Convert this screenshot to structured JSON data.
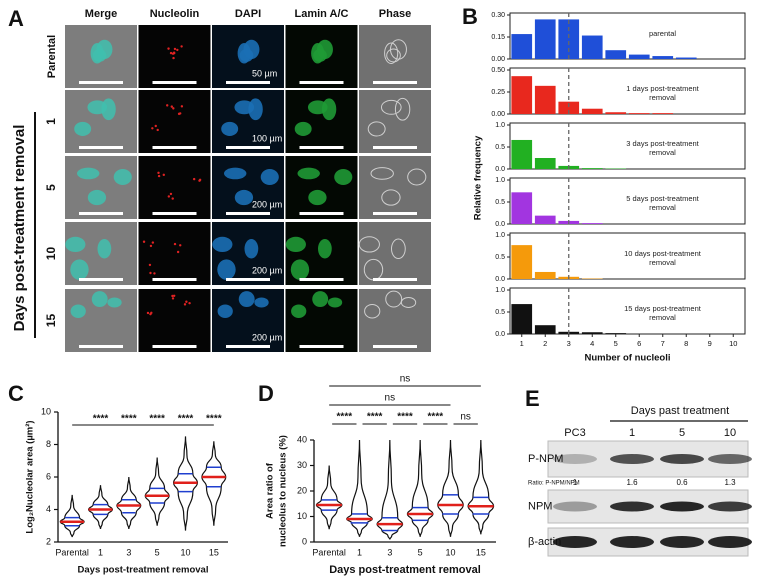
{
  "panel_a": {
    "letter": "A",
    "columns": [
      "Merge",
      "Nucleolin",
      "DAPI",
      "Lamin A/C",
      "Phase"
    ],
    "y_label": "Days post-treatment removal",
    "rows": [
      {
        "label": "Parental",
        "scale": "50 µm"
      },
      {
        "label": "1",
        "scale": "100 µm"
      },
      {
        "label": "5",
        "scale": "200 µm"
      },
      {
        "label": "10",
        "scale": "200 µm"
      },
      {
        "label": "15",
        "scale": "200 µm"
      }
    ]
  },
  "chart_data": [
    {
      "type": "bar",
      "letter": "B",
      "x_label": "Number of nucleoli",
      "y_label": "Relative frequency",
      "categories": [
        "1",
        "2",
        "3",
        "4",
        "5",
        "6",
        "7",
        "8",
        "9",
        "10"
      ],
      "vline": 3,
      "panels": [
        {
          "annotation": "parental",
          "color": "#1f4fd8",
          "values": [
            0.17,
            0.27,
            0.27,
            0.16,
            0.06,
            0.03,
            0.02,
            0.01,
            0,
            0
          ],
          "ylim": [
            0,
            0.3
          ],
          "yticks": [
            {
              "value": 0,
              "label": "0.00"
            },
            {
              "value": 0.15,
              "label": "0.15"
            },
            {
              "value": 0.3,
              "label": "0.30"
            }
          ]
        },
        {
          "annotation": "1 days post-treatment removal",
          "color": "#e8281e",
          "values": [
            0.43,
            0.32,
            0.14,
            0.06,
            0.02,
            0.01,
            0.01,
            0,
            0,
            0
          ],
          "ylim": [
            0,
            0.5
          ],
          "yticks": [
            {
              "value": 0,
              "label": "0.00"
            },
            {
              "value": 0.25,
              "label": "0.25"
            },
            {
              "value": 0.5,
              "label": "0.50"
            }
          ]
        },
        {
          "annotation": "3 days post-treatment removal",
          "color": "#22b022",
          "values": [
            0.66,
            0.25,
            0.07,
            0.02,
            0.01,
            0,
            0,
            0,
            0,
            0
          ],
          "ylim": [
            0,
            1
          ],
          "yticks": [
            {
              "value": 0,
              "label": "0.0"
            },
            {
              "value": 0.5,
              "label": "0.5"
            },
            {
              "value": 1,
              "label": "1.0"
            }
          ]
        },
        {
          "annotation": "5 days post-treatment removal",
          "color": "#a235e0",
          "values": [
            0.72,
            0.19,
            0.07,
            0.02,
            0,
            0,
            0,
            0,
            0,
            0
          ],
          "ylim": [
            0,
            1
          ],
          "yticks": [
            {
              "value": 0,
              "label": "0.0"
            },
            {
              "value": 0.5,
              "label": "0.5"
            },
            {
              "value": 1,
              "label": "1.0"
            }
          ]
        },
        {
          "annotation": "10 days post-treatment removal",
          "color": "#f59a0b",
          "values": [
            0.77,
            0.16,
            0.05,
            0.01,
            0,
            0,
            0,
            0,
            0,
            0
          ],
          "ylim": [
            0,
            1
          ],
          "yticks": [
            {
              "value": 0,
              "label": "0.0"
            },
            {
              "value": 0.5,
              "label": "0.5"
            },
            {
              "value": 1,
              "label": "1.0"
            }
          ]
        },
        {
          "annotation": "15 days post-treatment removal",
          "color": "#111111",
          "values": [
            0.68,
            0.2,
            0.05,
            0.04,
            0.02,
            0,
            0,
            0,
            0,
            0
          ],
          "ylim": [
            0,
            1
          ],
          "yticks": [
            {
              "value": 0,
              "label": "0.0"
            },
            {
              "value": 0.5,
              "label": "0.5"
            },
            {
              "value": 1,
              "label": "1.0"
            }
          ]
        }
      ]
    },
    {
      "type": "violin",
      "letter": "C",
      "x_label": "Days post-treatment removal",
      "y_label": [
        "Log₂Nucleolar area (µm²)"
      ],
      "categories": [
        "Parental",
        "1",
        "3",
        "5",
        "10",
        "15"
      ],
      "ylim": [
        2,
        10
      ],
      "yticks": [
        2,
        4,
        6,
        8,
        10
      ],
      "median_color": "#e0201b",
      "quartile_color": "#1f3fcf",
      "bracket": "shared",
      "stats": [
        {
          "min": 2.3,
          "q1": 3.0,
          "median": 3.25,
          "q3": 3.5,
          "max": 4.9
        },
        {
          "min": 2.8,
          "q1": 3.7,
          "median": 4.0,
          "q3": 4.3,
          "max": 5.5
        },
        {
          "min": 2.8,
          "q1": 3.8,
          "median": 4.25,
          "q3": 4.6,
          "max": 6.0
        },
        {
          "min": 3.0,
          "q1": 4.4,
          "median": 4.85,
          "q3": 5.3,
          "max": 7.2
        },
        {
          "min": 2.7,
          "q1": 5.1,
          "median": 5.65,
          "q3": 6.2,
          "max": 8.5
        },
        {
          "min": 3.0,
          "q1": 5.4,
          "median": 6.0,
          "q3": 6.6,
          "max": 8.2
        }
      ],
      "comparisons": [
        {
          "from": "Parental",
          "to": "1",
          "label": "****"
        },
        {
          "from": "Parental",
          "to": "3",
          "label": "****"
        },
        {
          "from": "Parental",
          "to": "5",
          "label": "****"
        },
        {
          "from": "Parental",
          "to": "10",
          "label": "****"
        },
        {
          "from": "Parental",
          "to": "15",
          "label": "****"
        }
      ]
    },
    {
      "type": "violin",
      "letter": "D",
      "x_label": "Days post-treatment removal",
      "y_label": [
        "Area ratio of",
        "nucleolus to nucleus (%)"
      ],
      "categories": [
        "Parental",
        "1",
        "3",
        "5",
        "10",
        "15"
      ],
      "ylim": [
        0,
        40
      ],
      "yticks": [
        0,
        10,
        20,
        30,
        40
      ],
      "median_color": "#e0201b",
      "quartile_color": "#1f3fcf",
      "bracket": "pairs",
      "stats": [
        {
          "min": 5,
          "q1": 12.5,
          "median": 14.5,
          "q3": 16.5,
          "max": 30
        },
        {
          "min": 2,
          "q1": 7.5,
          "median": 9,
          "q3": 11,
          "max": 40
        },
        {
          "min": 1,
          "q1": 4.5,
          "median": 7,
          "q3": 9.5,
          "max": 40
        },
        {
          "min": 2,
          "q1": 8.5,
          "median": 11,
          "q3": 13.5,
          "max": 40
        },
        {
          "min": 2,
          "q1": 11,
          "median": 14.5,
          "q3": 18.5,
          "max": 40
        },
        {
          "min": 3,
          "q1": 11,
          "median": 14,
          "q3": 17.5,
          "max": 40
        }
      ],
      "comparisons": [
        {
          "from": "Parental",
          "to": "1",
          "label": "****"
        },
        {
          "from": "1",
          "to": "3",
          "label": "****"
        },
        {
          "from": "3",
          "to": "5",
          "label": "****"
        },
        {
          "from": "5",
          "to": "10",
          "label": "****"
        },
        {
          "from": "10",
          "to": "15",
          "label": "ns"
        },
        {
          "from": "Parental",
          "to": "10",
          "label": "ns"
        },
        {
          "from": "Parental",
          "to": "15",
          "label": "ns"
        }
      ]
    }
  ],
  "panel_e": {
    "letter": "E",
    "header": "Days past treatment",
    "lanes": [
      "PC3",
      "1",
      "5",
      "10"
    ],
    "rows": [
      "P-NPM",
      "NPM",
      "β-actin"
    ],
    "ratio": {
      "label": "Ratio: P-NPM/NPM",
      "values": [
        1,
        1.6,
        0.6,
        1.3
      ]
    }
  }
}
